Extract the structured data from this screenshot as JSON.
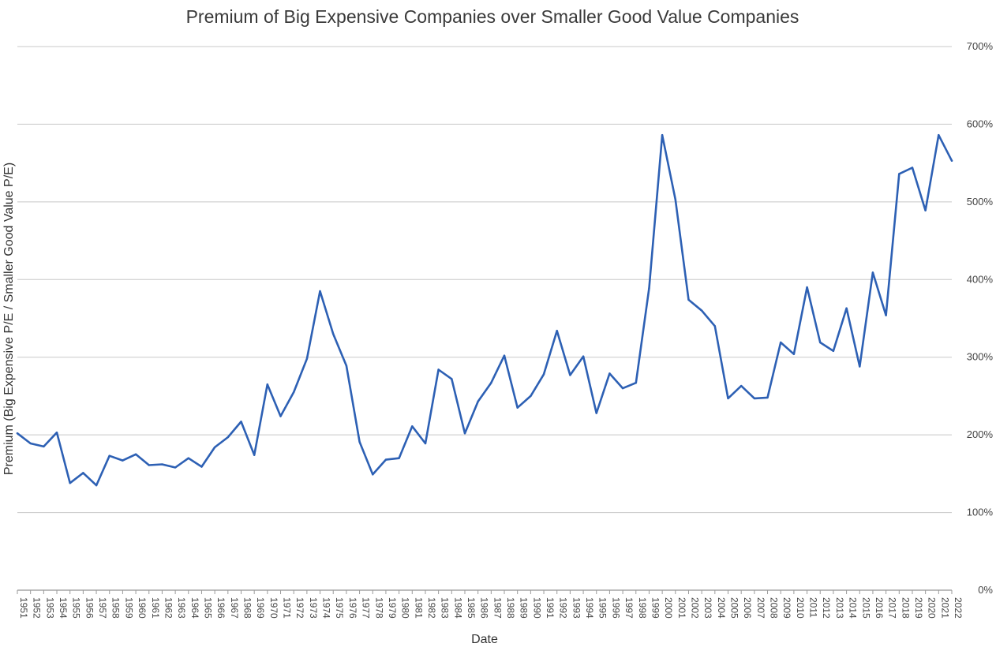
{
  "chart_data": {
    "type": "line",
    "title": "Premium of Big Expensive Companies over Smaller Good Value Companies",
    "xlabel": "Date",
    "ylabel": "Premium (Big Expensive P/E /  Smaller Good Value P/E)",
    "y_axis_position": "right",
    "ylim": [
      0,
      7
    ],
    "yticks": [
      0,
      1,
      2,
      3,
      4,
      5,
      6,
      7
    ],
    "ytick_labels": [
      "0%",
      "100%",
      "200%",
      "300%",
      "400%",
      "500%",
      "600%",
      "700%"
    ],
    "grid": true,
    "legend": "none",
    "line_color": "#2d60b4",
    "x": [
      "1951",
      "1952",
      "1953",
      "1954",
      "1955",
      "1956",
      "1957",
      "1958",
      "1959",
      "1960",
      "1961",
      "1962",
      "1963",
      "1964",
      "1965",
      "1966",
      "1967",
      "1968",
      "1969",
      "1970",
      "1971",
      "1972",
      "1973",
      "1974",
      "1975",
      "1976",
      "1977",
      "1978",
      "1979",
      "1980",
      "1981",
      "1982",
      "1983",
      "1984",
      "1985",
      "1986",
      "1987",
      "1988",
      "1989",
      "1990",
      "1991",
      "1992",
      "1993",
      "1994",
      "1995",
      "1996",
      "1997",
      "1998",
      "1999",
      "2000",
      "2001",
      "2002",
      "2003",
      "2004",
      "2005",
      "2006",
      "2007",
      "2008",
      "2009",
      "2010",
      "2011",
      "2012",
      "2013",
      "2014",
      "2015",
      "2016",
      "2017",
      "2018",
      "2019",
      "2020",
      "2021",
      "2022"
    ],
    "series": [
      {
        "values": [
          2.02,
          1.89,
          1.85,
          2.03,
          1.38,
          1.51,
          1.35,
          1.73,
          1.67,
          1.75,
          1.61,
          1.62,
          1.58,
          1.7,
          1.59,
          1.84,
          1.97,
          2.17,
          1.74,
          2.65,
          2.24,
          2.55,
          2.98,
          3.85,
          3.3,
          2.89,
          1.91,
          1.49,
          1.68,
          1.7,
          2.11,
          1.89,
          2.84,
          2.72,
          2.02,
          2.43,
          2.67,
          3.02,
          2.35,
          2.5,
          2.78,
          3.34,
          2.77,
          3.01,
          2.28,
          2.79,
          2.6,
          2.67,
          3.89,
          5.86,
          5.03,
          3.74,
          3.6,
          3.4,
          2.47,
          2.63,
          2.47,
          2.48,
          3.19,
          3.04,
          3.9,
          3.19,
          3.08,
          3.63,
          2.88,
          4.09,
          3.54,
          5.36,
          5.44,
          4.89,
          5.86,
          5.53
        ]
      }
    ]
  }
}
